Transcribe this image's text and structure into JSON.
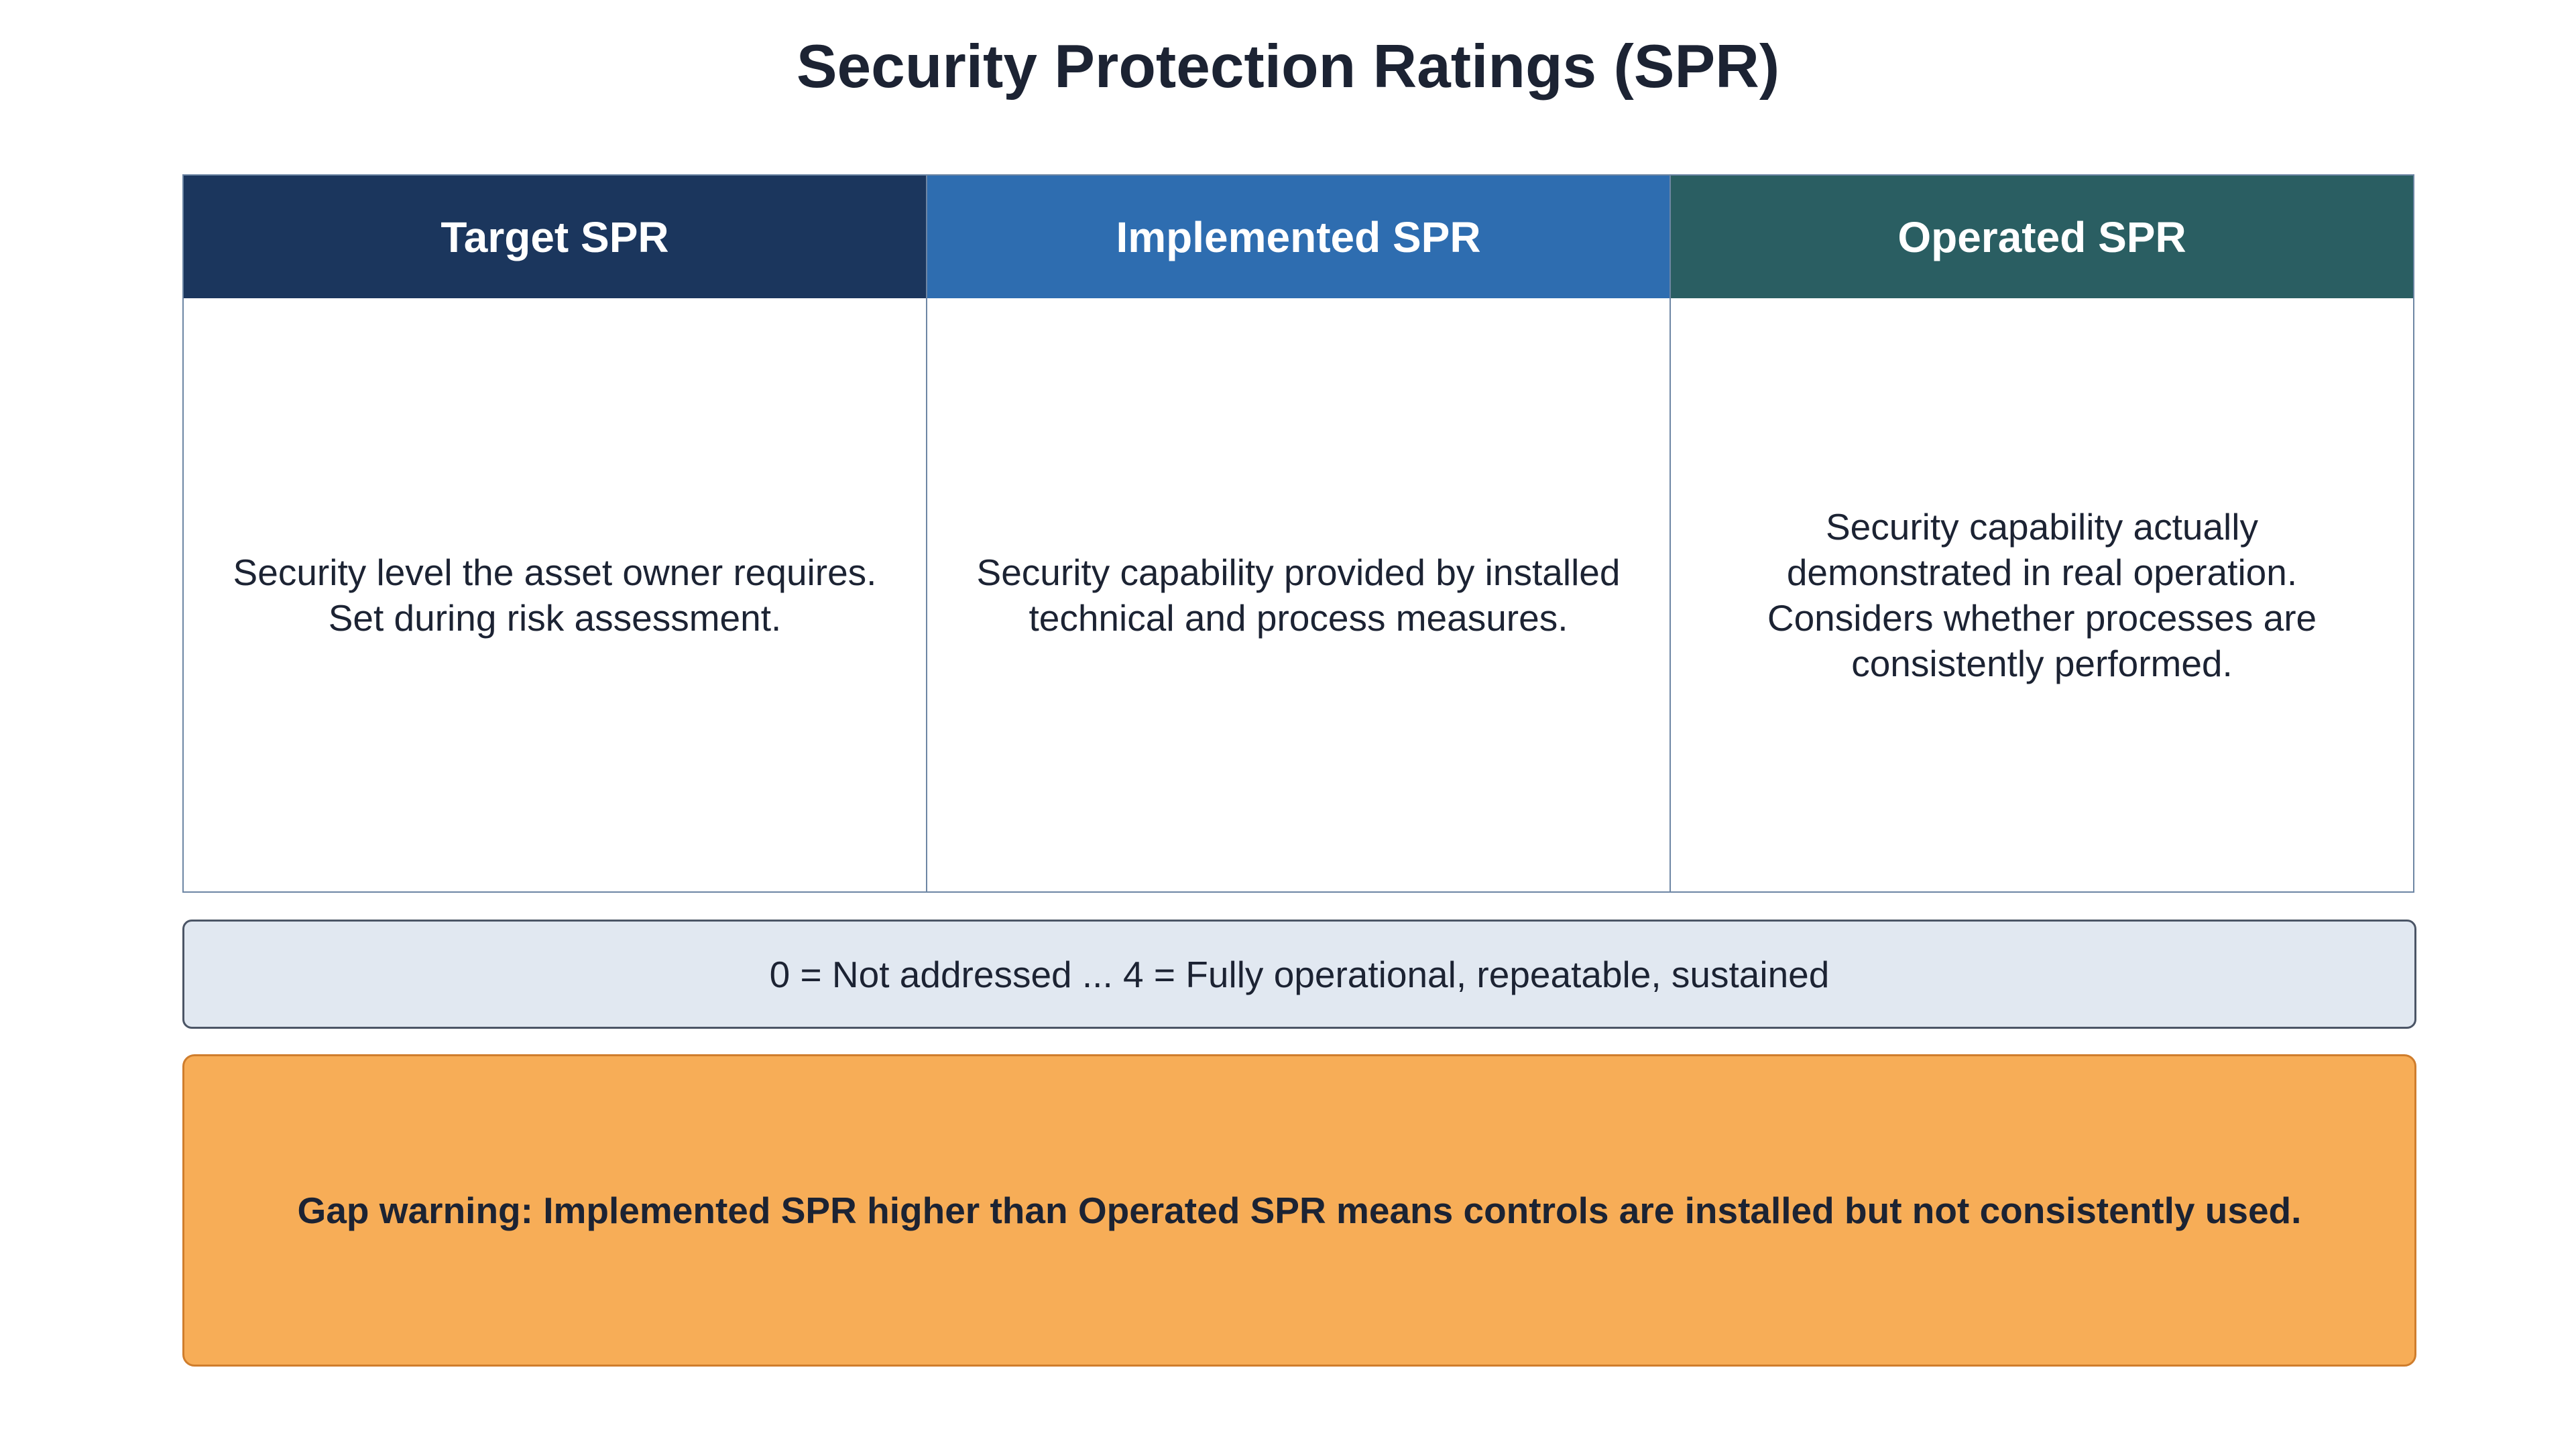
{
  "title": "Security Protection Ratings (SPR)",
  "columns": [
    {
      "header": "Target SPR",
      "color": "#1b365d",
      "lines": [
        "Security level the asset owner requires.",
        "Set during risk assessment."
      ]
    },
    {
      "header": "Implemented SPR",
      "color": "#2e6db0",
      "lines": [
        "Security capability provided by installed",
        "technical and process measures."
      ]
    },
    {
      "header": "Operated SPR",
      "color": "#2a5e62",
      "lines": [
        "Security capability actually",
        "demonstrated in real operation.",
        "Considers whether processes are",
        "consistently performed."
      ]
    }
  ],
  "scale": "0 = Not addressed ... 4 = Fully operational, repeatable, sustained",
  "warning": "Gap warning: Implemented SPR higher than Operated SPR means controls are installed but not consistently used."
}
